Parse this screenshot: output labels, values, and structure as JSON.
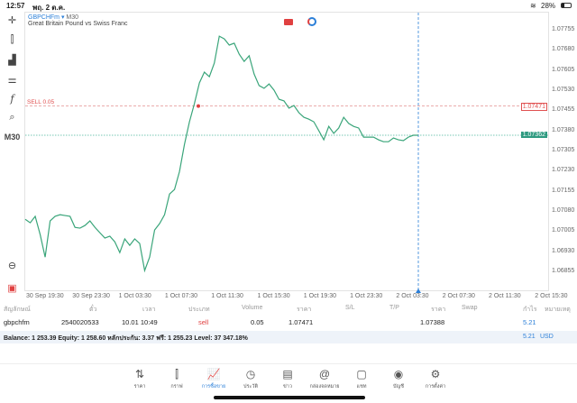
{
  "status": {
    "time": "12:57",
    "date": "พฤ. 2 ต.ค.",
    "battery": "28%"
  },
  "toolbar": {
    "timeframe": "M30"
  },
  "chart": {
    "symbol": "GBPCHFm",
    "tf": "M30",
    "description": "Great Britain Pound vs Swiss Franc",
    "sell_label": "SELL 0.05",
    "sell_price": "1.07471",
    "current_price": "1.07362"
  },
  "chart_data": {
    "type": "line",
    "title": "GBPCHFm M30",
    "y_ticks": [
      "1.07755",
      "1.07680",
      "1.07605",
      "1.07530",
      "1.07455",
      "1.07380",
      "1.07305",
      "1.07230",
      "1.07155",
      "1.07080",
      "1.07005",
      "1.06930",
      "1.06855"
    ],
    "x_ticks": [
      "30 Sep 19:30",
      "30 Sep 23:30",
      "1 Oct 03:30",
      "1 Oct 07:30",
      "1 Oct 11:30",
      "1 Oct 15:30",
      "1 Oct 19:30",
      "1 Oct 23:30",
      "2 Oct 03:30",
      "2 Oct 07:30",
      "2 Oct 11:30",
      "2 Oct 15:30"
    ],
    "ylim": [
      1.0681,
      1.07815
    ],
    "values": [
      1.07049,
      1.07036,
      1.0706,
      1.06992,
      1.06908,
      1.07043,
      1.0706,
      1.07066,
      1.07063,
      1.0706,
      1.07019,
      1.07016,
      1.07026,
      1.07043,
      1.07019,
      1.06999,
      1.06979,
      1.06986,
      1.06965,
      1.06925,
      1.06976,
      1.06952,
      1.06976,
      1.06959,
      1.06858,
      1.06908,
      1.07009,
      1.07033,
      1.07066,
      1.07143,
      1.0716,
      1.07227,
      1.07328,
      1.07412,
      1.0748,
      1.07557,
      1.07597,
      1.0758,
      1.07631,
      1.07731,
      1.07721,
      1.07698,
      1.07705,
      1.07664,
      1.07637,
      1.07658,
      1.0759,
      1.07547,
      1.07537,
      1.07553,
      1.0753,
      1.07496,
      1.0749,
      1.07463,
      1.07473,
      1.07446,
      1.07429,
      1.07422,
      1.07412,
      1.07379,
      1.07345,
      1.07395,
      1.07369,
      1.07389,
      1.07429,
      1.07406,
      1.07395,
      1.07389,
      1.07355,
      1.07355,
      1.07355,
      1.07345,
      1.07338,
      1.07338,
      1.07352,
      1.07345,
      1.07342,
      1.07355,
      1.07362,
      1.07362
    ],
    "line_color": "#3aa57a"
  },
  "table": {
    "headers": [
      "สัญลักษณ์",
      "ตั๋ว",
      "เวลา",
      "ประเภท",
      "Volume",
      "ราคา",
      "S/L",
      "T/P",
      "ราคา",
      "Swap",
      "กำไร",
      "หมายเหตุ"
    ],
    "row": {
      "symbol": "gbpchfm",
      "ticket": "2540020533",
      "time": "10.01 10:49",
      "type": "sell",
      "volume": "0.05",
      "open_price": "1.07471",
      "sl": "",
      "tp": "",
      "price": "1.07388",
      "swap": "",
      "profit": "5.21"
    }
  },
  "balance": {
    "text": "Balance: 1 253.39 Equity: 1 258.60 หลักประกัน: 3.37 ฟรี: 1 255.23 Level: 37 347.18%",
    "profit": "5.21",
    "currency": "USD"
  },
  "nav": [
    {
      "label": "ราคา",
      "icon": "⇅"
    },
    {
      "label": "กราฟ",
      "icon": "⫿"
    },
    {
      "label": "การซื้อขาย",
      "icon": "📈"
    },
    {
      "label": "ประวัติ",
      "icon": "◷"
    },
    {
      "label": "ข่าว",
      "icon": "▤"
    },
    {
      "label": "กล่องจดหมาย",
      "icon": "@"
    },
    {
      "label": "แชท",
      "icon": "▢"
    },
    {
      "label": "บัญชี",
      "icon": "◉"
    },
    {
      "label": "การตั้งค่า",
      "icon": "⚙"
    }
  ]
}
